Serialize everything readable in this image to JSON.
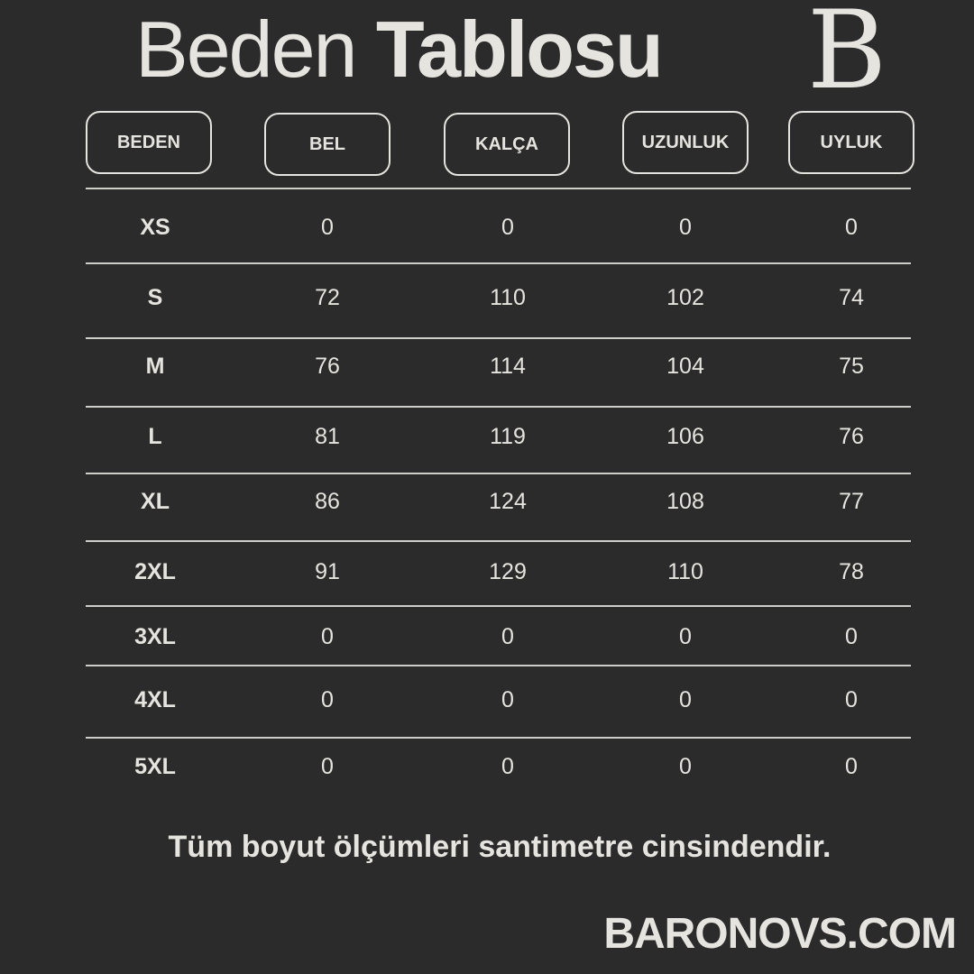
{
  "title": {
    "light": "Beden",
    "bold": "Tablosu"
  },
  "logo": "B",
  "colors": {
    "background": "#2b2b2b",
    "text": "#e6e4de"
  },
  "headers": [
    "BEDEN",
    "BEL",
    "KALÇA",
    "UZUNLUK",
    "UYLUK"
  ],
  "rows": [
    [
      "XS",
      "0",
      "0",
      "0",
      "0"
    ],
    [
      "S",
      "72",
      "110",
      "102",
      "74"
    ],
    [
      "M",
      "76",
      "114",
      "104",
      "75"
    ],
    [
      "L",
      "81",
      "119",
      "106",
      "76"
    ],
    [
      "XL",
      "86",
      "124",
      "108",
      "77"
    ],
    [
      "2XL",
      "91",
      "129",
      "110",
      "78"
    ],
    [
      "3XL",
      "0",
      "0",
      "0",
      "0"
    ],
    [
      "4XL",
      "0",
      "0",
      "0",
      "0"
    ],
    [
      "5XL",
      "0",
      "0",
      "0",
      "0"
    ]
  ],
  "note": "Tüm boyut ölçümleri santimetre cinsindendir.",
  "brand": "BARONOVS.COM"
}
